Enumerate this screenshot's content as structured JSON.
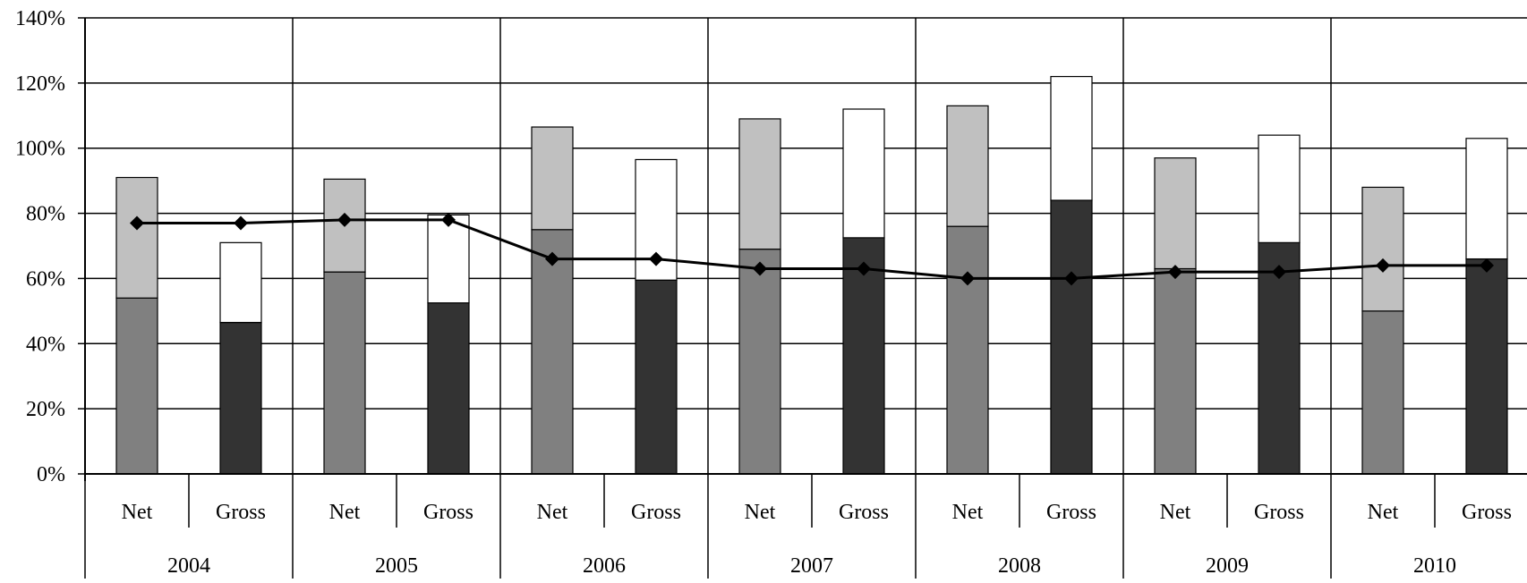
{
  "chart_data": {
    "type": "bar",
    "subtype": "stacked bar with line overlay",
    "title": "",
    "xlabel": "",
    "ylabel": "",
    "ylim": [
      0,
      140
    ],
    "y_unit": "%",
    "y_ticks": [
      "0%",
      "20%",
      "40%",
      "60%",
      "80%",
      "100%",
      "120%",
      "140%"
    ],
    "grid": true,
    "legend": "none",
    "groups": [
      "2004",
      "2005",
      "2006",
      "2007",
      "2008",
      "2009",
      "2010"
    ],
    "sub_categories": [
      "Net",
      "Gross"
    ],
    "series": [
      {
        "stack": "Net",
        "role": "bottom",
        "color": "#808080",
        "values": [
          54,
          62,
          75,
          69,
          76,
          63,
          50
        ]
      },
      {
        "stack": "Net",
        "role": "top",
        "color": "#c0c0c0",
        "values": [
          37,
          28.5,
          31.5,
          40,
          37,
          34,
          38
        ]
      },
      {
        "stack": "Gross",
        "role": "bottom",
        "color": "#333333",
        "values": [
          46.5,
          52.5,
          59.5,
          72.5,
          84,
          71,
          66
        ]
      },
      {
        "stack": "Gross",
        "role": "top",
        "color": "#ffffff",
        "values": [
          24.5,
          27,
          37,
          39.5,
          38,
          33,
          37
        ]
      },
      {
        "type": "line",
        "marker": "diamond",
        "color": "#000000",
        "values_per_group": [
          77,
          78,
          66,
          63,
          60,
          62,
          64
        ]
      }
    ]
  }
}
